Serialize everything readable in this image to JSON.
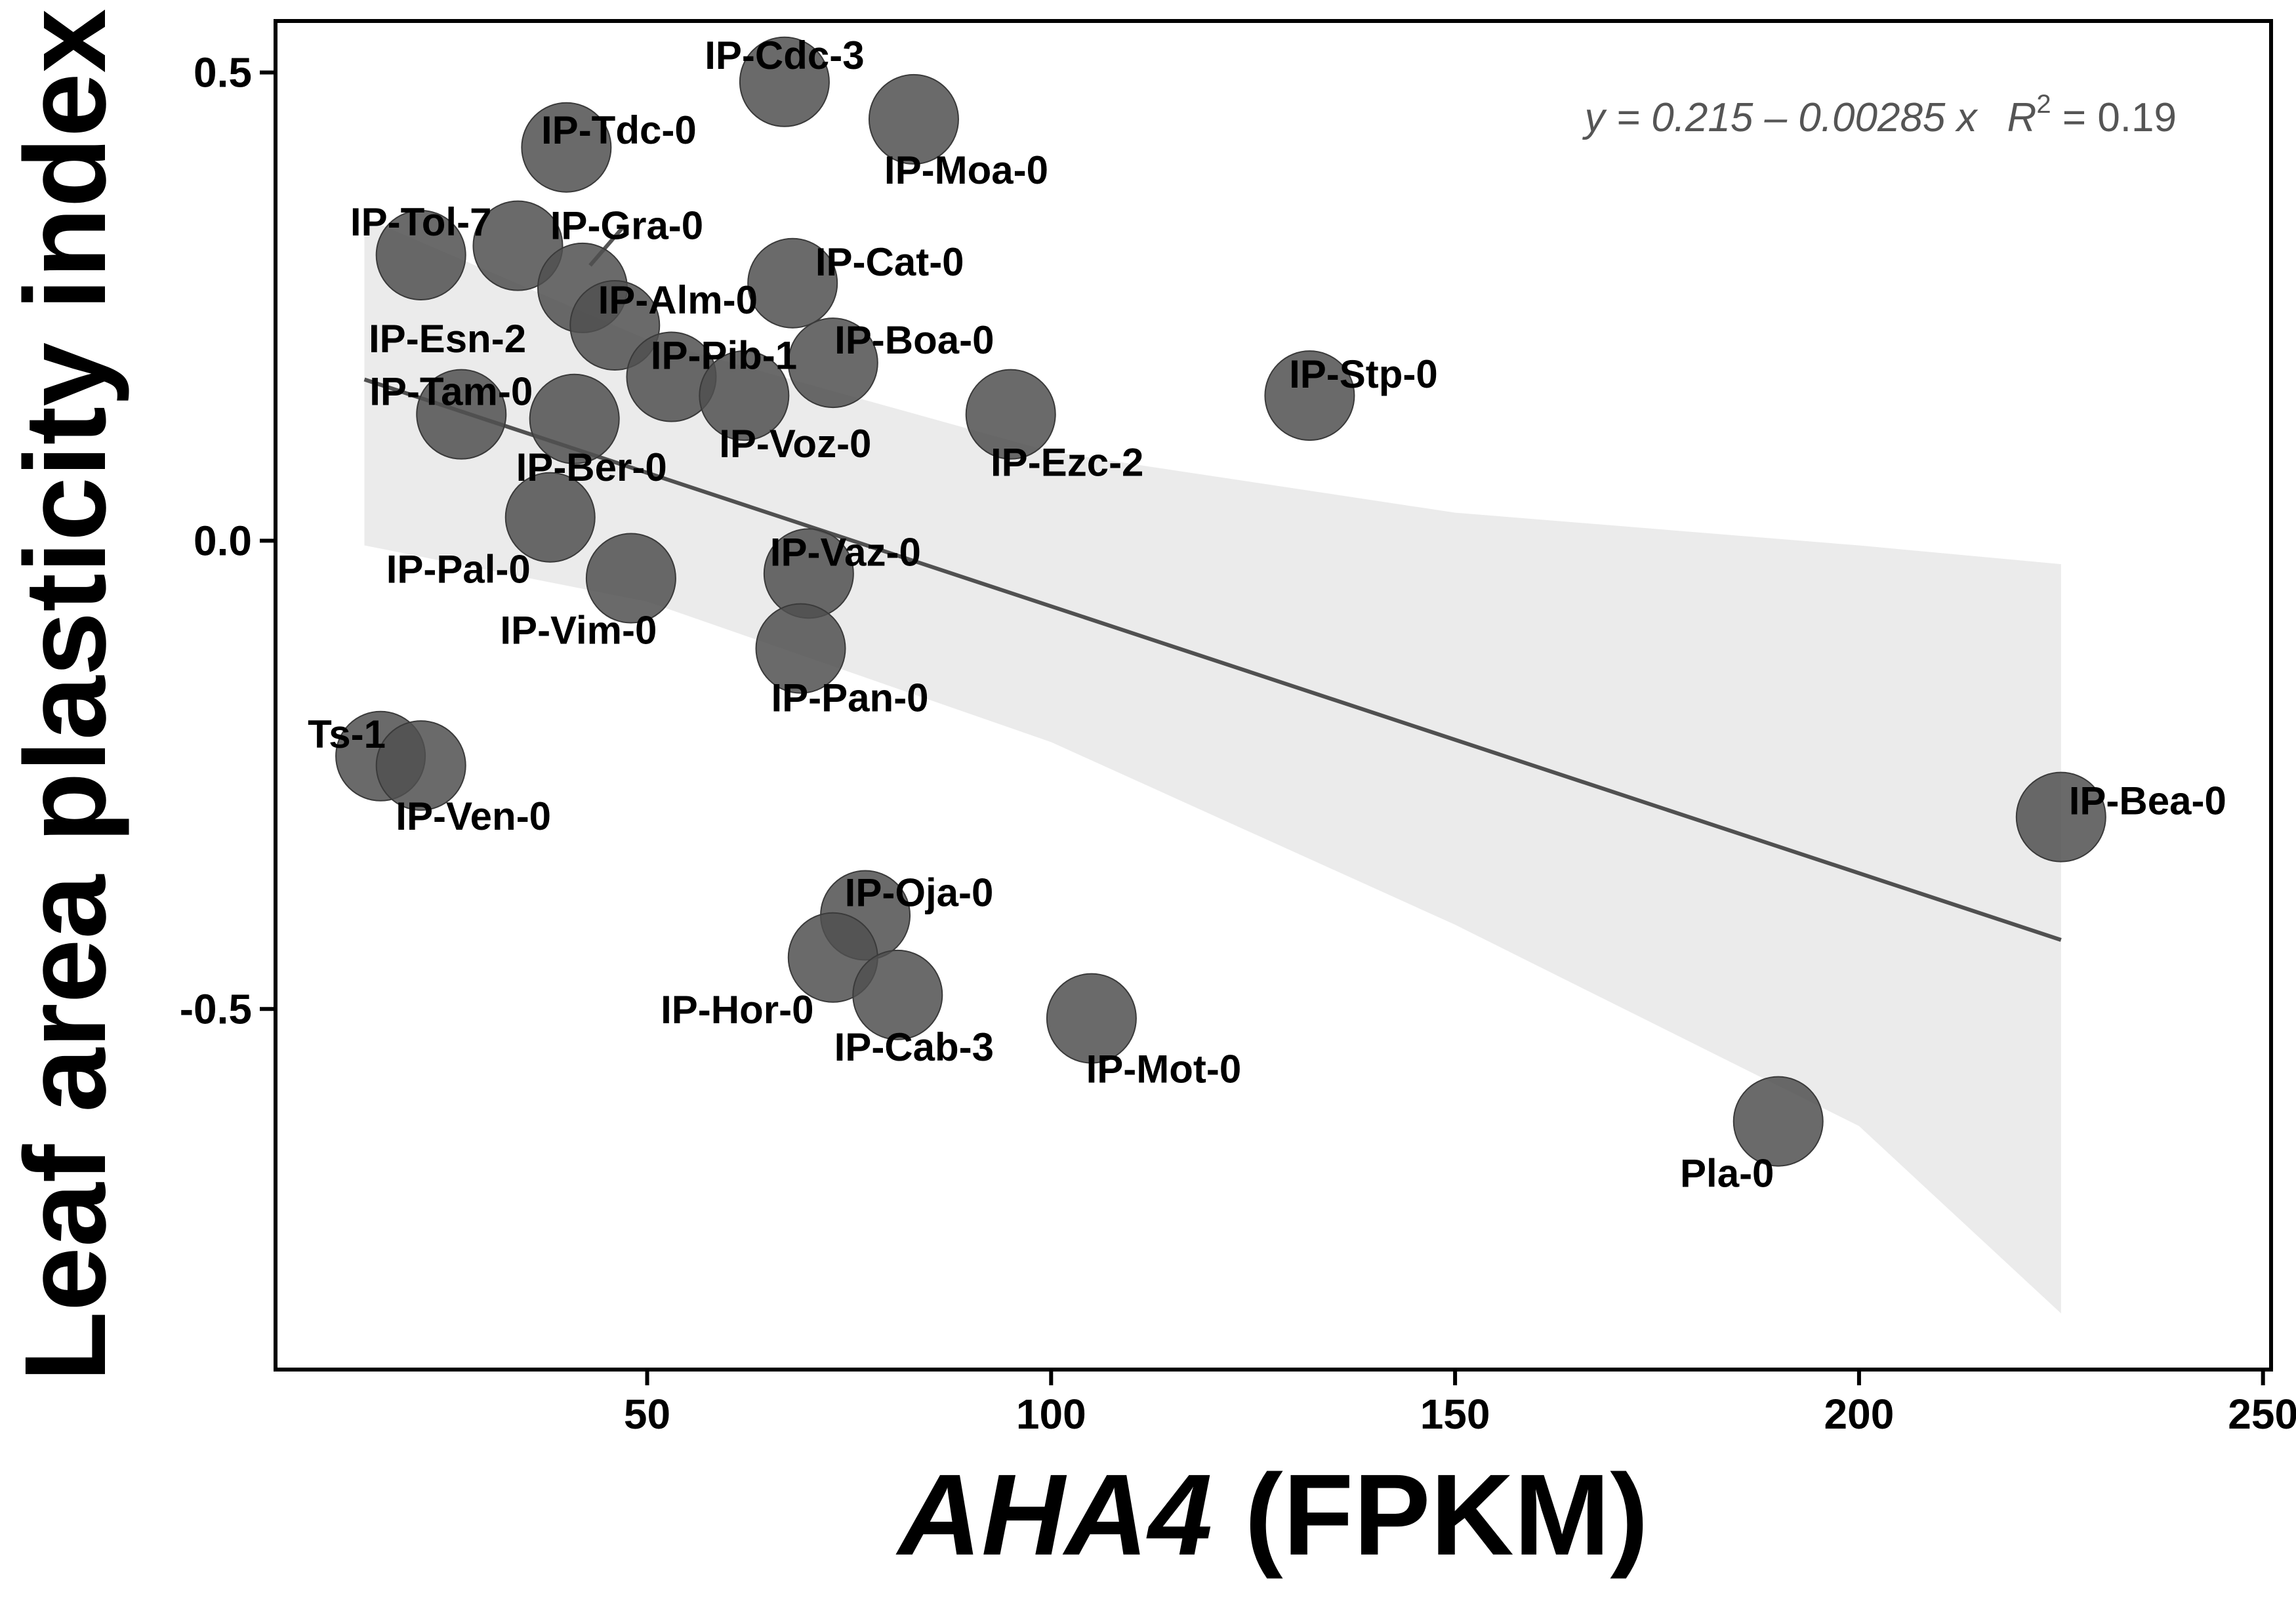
{
  "chart_data": {
    "type": "scatter",
    "xlabel_italic": "AHA4",
    "xlabel_rest": " (FPKM)",
    "ylabel": "Leaf area plasticity index",
    "xlim": [
      4,
      251
    ],
    "ylim": [
      -0.885,
      0.555
    ],
    "x_ticks": [
      50,
      100,
      150,
      200,
      250
    ],
    "x_tick_labels": [
      "50",
      "100",
      "150",
      "200",
      "250"
    ],
    "y_ticks": [
      0.5,
      0.0,
      -0.5
    ],
    "y_tick_labels": [
      "0.5",
      "0.0",
      "-0.5"
    ],
    "grid": false,
    "point_color": "#505050",
    "line_color": "#505050",
    "band_color": "#ebebeb",
    "equation": {
      "text": "y = 0.215 – 0.00285 x",
      "r2_symbol": "R",
      "r2_exponent": "2",
      "r2_value": " = 0.19"
    },
    "fit": {
      "intercept": 0.215,
      "slope": -0.00285,
      "x_range": [
        15,
        225
      ],
      "band": [
        {
          "x": 15,
          "lower": -0.005,
          "upper": 0.345
        },
        {
          "x": 50,
          "lower": -0.065,
          "upper": 0.215
        },
        {
          "x": 100,
          "lower": -0.215,
          "upper": 0.095
        },
        {
          "x": 150,
          "lower": -0.41,
          "upper": 0.03
        },
        {
          "x": 200,
          "lower": -0.625,
          "upper": -0.005
        },
        {
          "x": 225,
          "lower": -0.825,
          "upper": -0.025
        }
      ]
    },
    "points": [
      {
        "name": "IP-Cdc-3",
        "x": 67,
        "y": 0.49
      },
      {
        "name": "IP-Moa-0",
        "x": 83,
        "y": 0.45
      },
      {
        "name": "IP-Tdc-0",
        "x": 40,
        "y": 0.42
      },
      {
        "name": "IP-Tol-7",
        "x": 22,
        "y": 0.305
      },
      {
        "name": "IP-Gra-0",
        "x": 34,
        "y": 0.315
      },
      {
        "name": "IP-Esn-2",
        "x": 42,
        "y": 0.27
      },
      {
        "name": "IP-Cat-0",
        "x": 68,
        "y": 0.275
      },
      {
        "name": "IP-Alm-0",
        "x": 46,
        "y": 0.23
      },
      {
        "name": "IP-Boa-0",
        "x": 73,
        "y": 0.19
      },
      {
        "name": "IP-Pib-1",
        "x": 53,
        "y": 0.175
      },
      {
        "name": "IP-Stp-0",
        "x": 132,
        "y": 0.155
      },
      {
        "name": "IP-Tam-0",
        "x": 27,
        "y": 0.135
      },
      {
        "name": "IP-Voz-0",
        "x": 62,
        "y": 0.155
      },
      {
        "name": "IP-Ezc-2",
        "x": 95,
        "y": 0.135
      },
      {
        "name": "IP-Ber-0",
        "x": 41,
        "y": 0.13
      },
      {
        "name": "IP-Pal-0",
        "x": 38,
        "y": 0.025
      },
      {
        "name": "IP-Vim-0",
        "x": 48,
        "y": -0.04
      },
      {
        "name": "IP-Vaz-0",
        "x": 70,
        "y": -0.035
      },
      {
        "name": "IP-Pan-0",
        "x": 69,
        "y": -0.115
      },
      {
        "name": "Ts-1",
        "x": 17,
        "y": -0.23
      },
      {
        "name": "IP-Ven-0",
        "x": 22,
        "y": -0.24
      },
      {
        "name": "IP-Bea-0",
        "x": 225,
        "y": -0.295
      },
      {
        "name": "IP-Oja-0",
        "x": 77,
        "y": -0.4
      },
      {
        "name": "IP-Hor-0",
        "x": 73,
        "y": -0.445
      },
      {
        "name": "IP-Cab-3",
        "x": 81,
        "y": -0.485
      },
      {
        "name": "IP-Mot-0",
        "x": 105,
        "y": -0.51
      },
      {
        "name": "Pla-0",
        "x": 190,
        "y": -0.62
      }
    ]
  }
}
